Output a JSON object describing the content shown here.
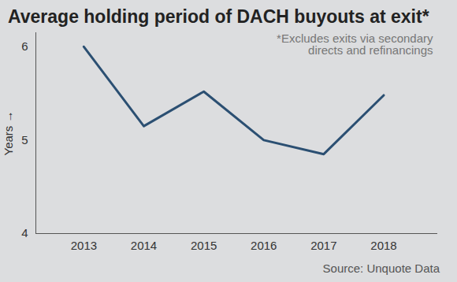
{
  "chart_data": {
    "type": "line",
    "title": "Average holding period of DACH buyouts at exit*",
    "annotation": "*Excludes exits via secondary directs and refinancings",
    "y_label": "Years",
    "source": "Source: Unquote Data",
    "x": [
      2013,
      2014,
      2015,
      2016,
      2017,
      2018
    ],
    "values": [
      6.0,
      5.15,
      5.52,
      5.0,
      4.85,
      5.48
    ],
    "color": "#2b4f72",
    "xlim": [
      2012.2,
      2018.9
    ],
    "xticks": [
      2013,
      2014,
      2015,
      2016,
      2017,
      2018
    ],
    "ylim": [
      4,
      6.15
    ],
    "yticks": [
      4,
      5,
      6
    ],
    "grid": false
  }
}
